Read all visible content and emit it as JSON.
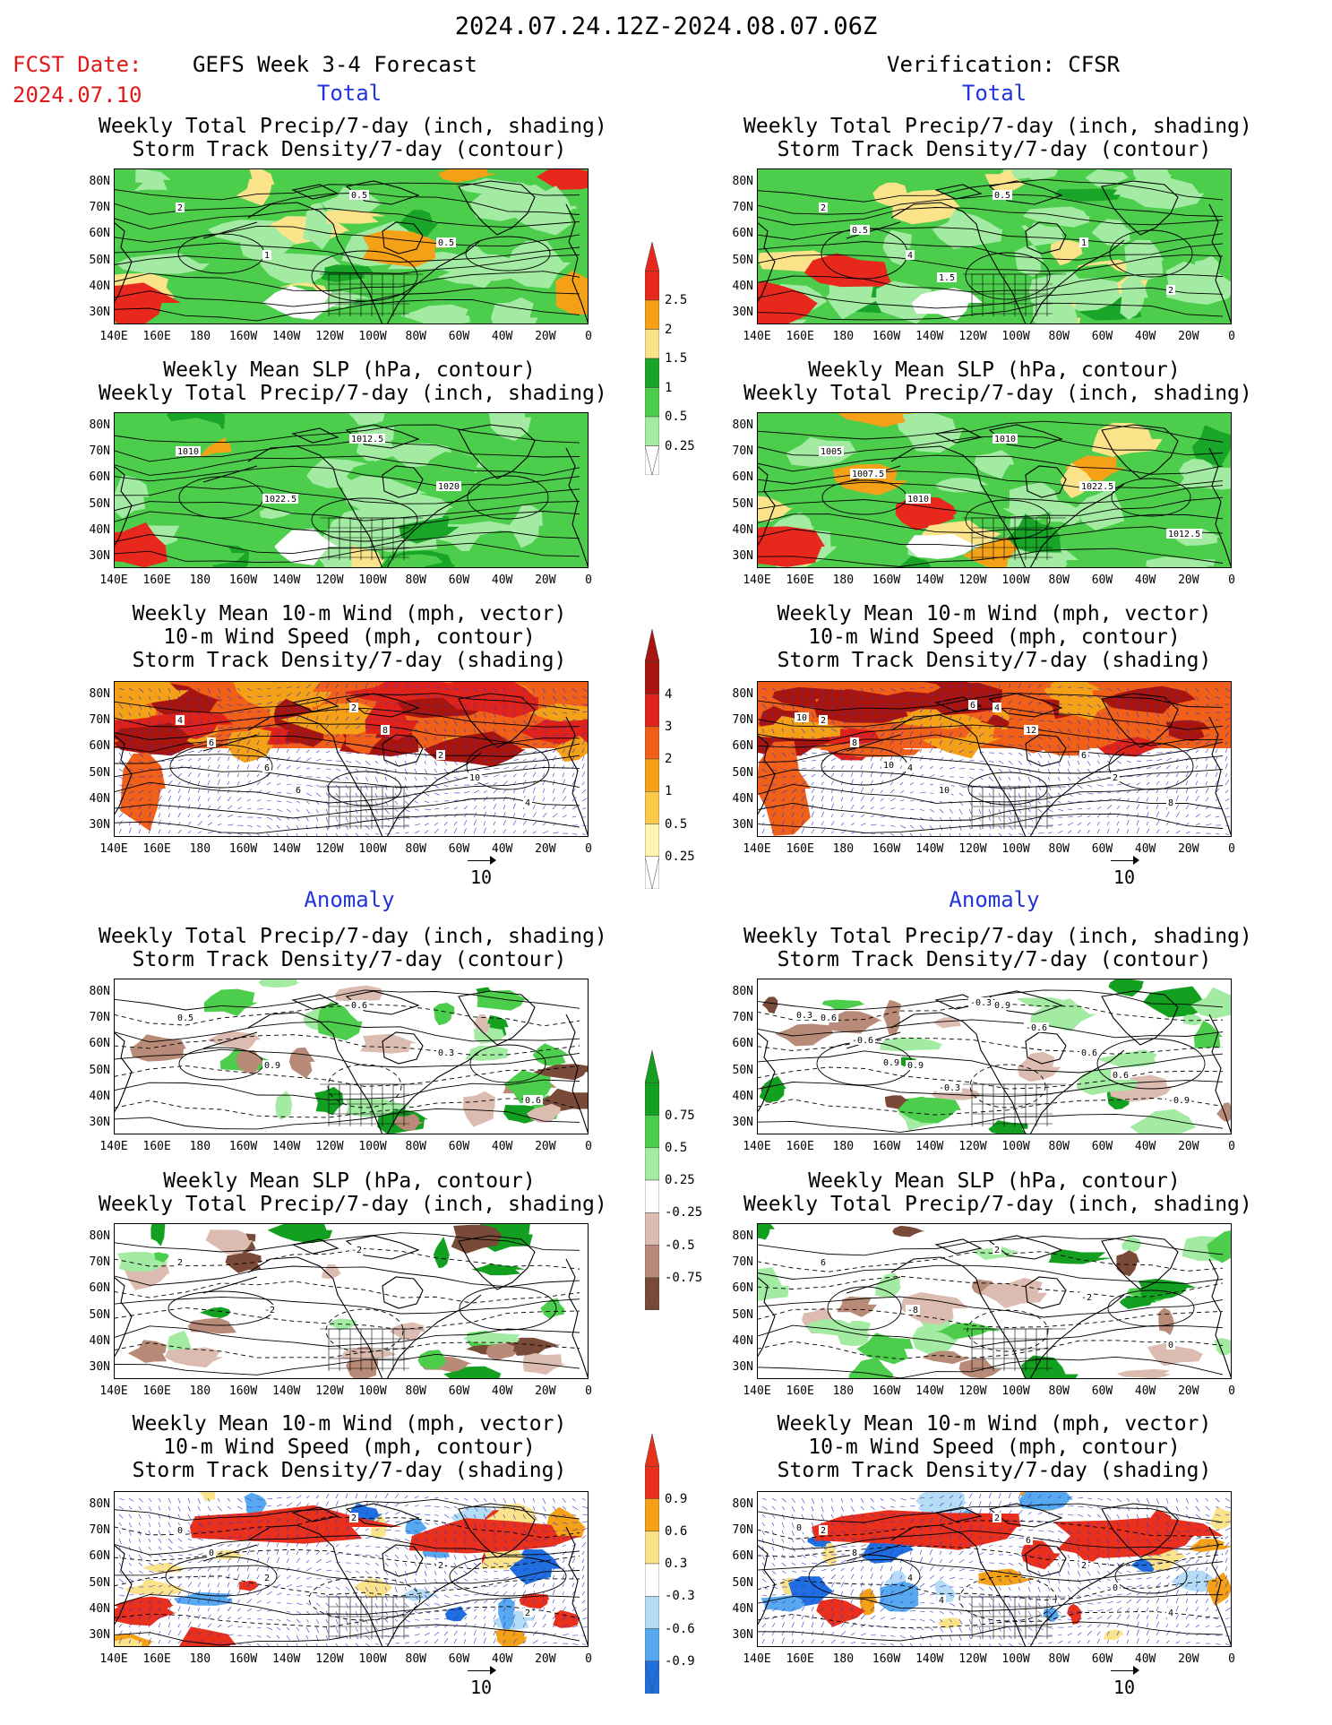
{
  "header": {
    "date_range": "2024.07.24.12Z-2024.08.07.06Z",
    "fcst_label": "FCST Date:",
    "fcst_date": "2024.07.10",
    "left_title": "GEFS Week 3-4 Forecast",
    "right_title": "Verification: CFSR"
  },
  "sections": {
    "total": "Total",
    "anomaly": "Anomaly"
  },
  "panel_titles": {
    "precip_storm": [
      "Weekly Total Precip/7-day (inch, shading)",
      "Storm Track Density/7-day (contour)"
    ],
    "slp_precip": [
      "Weekly Mean SLP (hPa, contour)",
      "Weekly Total Precip/7-day (inch, shading)"
    ],
    "wind_storm": [
      "Weekly Mean 10-m Wind (mph, vector)",
      "10-m Wind Speed (mph, contour)",
      "Storm Track Density/7-day (shading)"
    ]
  },
  "axes": {
    "lat_labels": [
      "80N",
      "70N",
      "60N",
      "50N",
      "40N",
      "30N"
    ],
    "lon_labels": [
      "140E",
      "160E",
      "180",
      "160W",
      "140W",
      "120W",
      "100W",
      "80W",
      "60W",
      "40W",
      "20W",
      "0"
    ]
  },
  "vector_ref": "10",
  "colorbars": {
    "total_precip": {
      "labels": [
        "2.5",
        "2",
        "1.5",
        "1",
        "0.5",
        "0.25"
      ],
      "colors": [
        "#e8281c",
        "#f5a118",
        "#fbe38a",
        "#18a528",
        "#4ccd4c",
        "#a3eba3"
      ]
    },
    "total_storm": {
      "labels": [
        "4",
        "3",
        "2",
        "1",
        "0.5",
        "0.25"
      ],
      "colors": [
        "#a8150f",
        "#e0231a",
        "#f06018",
        "#f5a118",
        "#fbca4a",
        "#fef4b0"
      ]
    },
    "anom_precip": {
      "labels": [
        "0.75",
        "0.5",
        "0.25",
        "-0.25",
        "-0.5",
        "-0.75"
      ],
      "colors_pos": [
        "#13a020",
        "#4ccd4c",
        "#a3eba3"
      ],
      "colors_neg": [
        "#dcbcb0",
        "#b88a78",
        "#7a4a38"
      ]
    },
    "anom_storm": {
      "labels": [
        "0.9",
        "0.6",
        "0.3",
        "-0.3",
        "-0.6",
        "-0.9"
      ],
      "colors_pos": [
        "#e8301c",
        "#f5a118",
        "#fbe38a"
      ],
      "colors_neg": [
        "#b5dcf5",
        "#57a8ef",
        "#1f6fe0"
      ]
    }
  },
  "contour_labels": {
    "p1": [
      "2",
      "1",
      "0.5",
      "0.5"
    ],
    "p2": [
      "2",
      "4",
      "0.5",
      "1",
      "2",
      "0.5",
      "1.5"
    ],
    "p3": [
      "1010",
      "1022.5",
      "1012.5",
      "1020"
    ],
    "p4": [
      "1005",
      "1010",
      "1010",
      "1022.5",
      "1012.5",
      "1007.5"
    ],
    "p5": [
      "4",
      "6",
      "2",
      "2",
      "4",
      "6",
      "6",
      "8",
      "10"
    ],
    "p6": [
      "2",
      "4",
      "4",
      "6",
      "8",
      "8",
      "10",
      "12",
      "2",
      "10",
      "10",
      "6"
    ],
    "p7": [
      "0.5",
      "0.9",
      "0.6",
      "0.3",
      "0.6"
    ],
    "p8": [
      "0.6",
      "0.9",
      "0.9",
      "0.6",
      "-0.9",
      "-0.6",
      "-0.3",
      "-0.6",
      "0.6",
      "0.3",
      "0.9",
      "-0.3"
    ],
    "p9": [
      "2",
      "-2",
      "-2"
    ],
    "p10": [
      "6",
      "-8",
      "2",
      "-2",
      "0"
    ],
    "p11": [
      "0",
      "2",
      "2",
      "2",
      "2",
      "0"
    ],
    "p12": [
      "2",
      "4",
      "2",
      "2",
      "4",
      "8",
      "4",
      "6",
      "0",
      "0"
    ]
  }
}
